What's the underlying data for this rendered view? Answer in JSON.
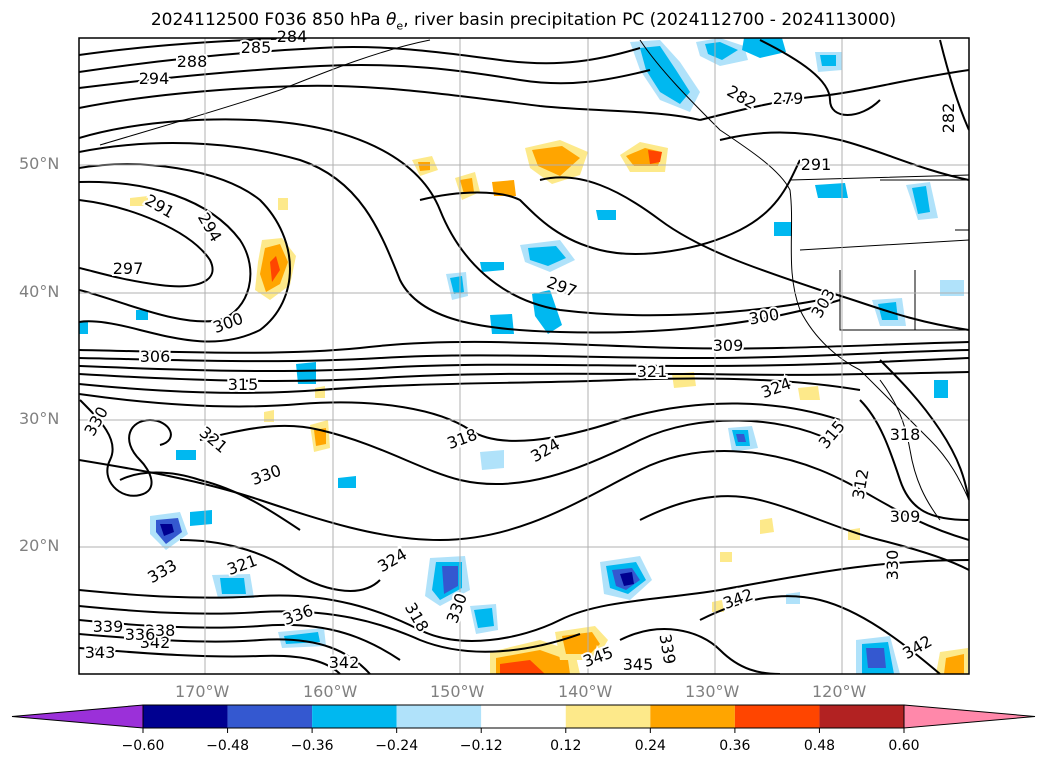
{
  "title_main": "2024112500 F036 850 hPa ",
  "title_theta": "θ",
  "title_sub": "e",
  "title_rest": ", river basin precipitation PC (2024112700 - 2024113000)",
  "map": {
    "lon_labels": [
      "170°W",
      "160°W",
      "150°W",
      "140°W",
      "130°W",
      "120°W"
    ],
    "lat_labels": [
      "50°N",
      "40°N",
      "30°N",
      "20°N"
    ],
    "contour_labels": [
      "284",
      "285",
      "288",
      "294",
      "291",
      "294",
      "297",
      "300",
      "306",
      "315",
      "330",
      "321",
      "330",
      "333",
      "321",
      "324",
      "318",
      "324",
      "297",
      "300",
      "309",
      "321",
      "324",
      "282",
      "279",
      "282",
      "291",
      "303",
      "315",
      "318",
      "312",
      "309",
      "330",
      "342",
      "345",
      "345",
      "339",
      "342",
      "339",
      "336",
      "343",
      "342",
      "338",
      "336",
      "342",
      "318",
      "330"
    ]
  },
  "colorbar": {
    "ticks": [
      "−0.60",
      "−0.48",
      "−0.36",
      "−0.24",
      "−0.12",
      "0.12",
      "0.24",
      "0.36",
      "0.48",
      "0.60"
    ],
    "colors": [
      "#9b30d9",
      "#000090",
      "#3458d0",
      "#00b8f0",
      "#b0e2fa",
      "#ffffff",
      "#fde98a",
      "#ffa500",
      "#ff4500",
      "#b22222",
      "#ff88aa"
    ]
  }
}
